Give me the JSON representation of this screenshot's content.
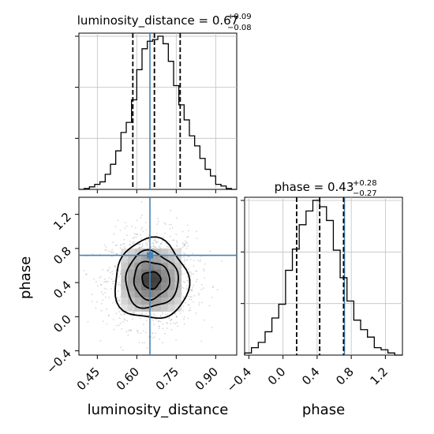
{
  "chart_data": {
    "type": "corner",
    "parameters": [
      "luminosity_distance",
      "phase"
    ],
    "truths": {
      "luminosity_distance": 0.65,
      "phase": 0.72
    },
    "grid": true,
    "colors": {
      "truth": "#4682b4",
      "hist": "#000000",
      "grid": "#c0c0c0",
      "scatter": "#8c8c8c"
    },
    "panels": [
      {
        "id": "hist_luminosity_distance",
        "title": {
          "param": "luminosity_distance",
          "median": "0.67",
          "plus": "+0.09",
          "minus": "−0.08"
        },
        "xlim": [
          0.38,
          0.98
        ],
        "quantiles": [
          0.585,
          0.667,
          0.765
        ],
        "bin_edges": [
          0.38,
          0.4,
          0.42,
          0.44,
          0.46,
          0.48,
          0.5,
          0.52,
          0.54,
          0.56,
          0.58,
          0.6,
          0.62,
          0.64,
          0.66,
          0.68,
          0.7,
          0.72,
          0.74,
          0.76,
          0.78,
          0.8,
          0.82,
          0.84,
          0.86,
          0.88,
          0.9,
          0.92,
          0.94,
          0.96,
          0.98
        ],
        "counts": [
          0,
          1,
          3,
          6,
          9,
          18,
          30,
          46,
          68,
          80,
          107,
          143,
          168,
          177,
          179,
          183,
          174,
          153,
          124,
          101,
          83,
          64,
          52,
          37,
          24,
          16,
          6,
          4,
          1,
          0
        ]
      },
      {
        "id": "hist_phase",
        "title": {
          "param": "phase",
          "median": "0.43",
          "plus": "+0.28",
          "minus": "−0.27"
        },
        "xlim": [
          -0.45,
          1.4
        ],
        "quantiles": [
          0.16,
          0.43,
          0.71
        ],
        "bin_edges": [
          -0.45,
          -0.37,
          -0.29,
          -0.21,
          -0.13,
          -0.05,
          0.03,
          0.11,
          0.19,
          0.27,
          0.35,
          0.43,
          0.51,
          0.59,
          0.67,
          0.75,
          0.83,
          0.91,
          0.99,
          1.07,
          1.15,
          1.23,
          1.31,
          1.4
        ],
        "counts": [
          2,
          7,
          12,
          22,
          35,
          48,
          80,
          100,
          123,
          136,
          146,
          140,
          127,
          99,
          73,
          51,
          33,
          24,
          17,
          7,
          5,
          2,
          0
        ],
        "xticks": [
          -0.4,
          0.0,
          0.4,
          0.8,
          1.2
        ],
        "xticklabels": [
          "−0.4",
          "0.0",
          "0.4",
          "0.8",
          "1.2"
        ],
        "xlabel": "phase"
      },
      {
        "id": "joint",
        "xparam": "luminosity_distance",
        "yparam": "phase",
        "xlim": [
          0.38,
          0.98
        ],
        "ylim": [
          -0.45,
          1.4
        ],
        "xticks": [
          0.45,
          0.6,
          0.75,
          0.9
        ],
        "xticklabels": [
          "0.45",
          "0.60",
          "0.75",
          "0.90"
        ],
        "yticks": [
          -0.4,
          0.0,
          0.4,
          0.8,
          1.2
        ],
        "yticklabels": [
          "−0.4",
          "0.0",
          "0.4",
          "0.8",
          "1.2"
        ],
        "xlabel": "luminosity_distance",
        "ylabel": "phase",
        "center": [
          0.655,
          0.43
        ],
        "contour_levels": [
          {
            "level": 0.118,
            "rx": 0.035,
            "ry": 0.1
          },
          {
            "level": 0.393,
            "rx": 0.068,
            "ry": 0.22
          },
          {
            "level": 0.675,
            "rx": 0.1,
            "ry": 0.33
          },
          {
            "level": 0.865,
            "rx": 0.14,
            "ry": 0.47
          }
        ]
      }
    ]
  }
}
